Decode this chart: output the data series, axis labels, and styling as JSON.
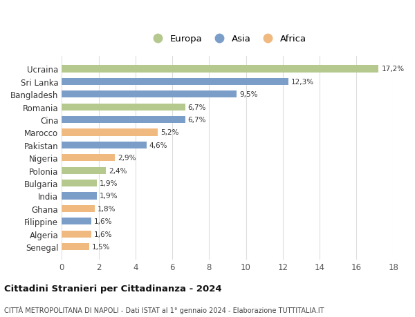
{
  "countries": [
    "Ucraina",
    "Sri Lanka",
    "Bangladesh",
    "Romania",
    "Cina",
    "Marocco",
    "Pakistan",
    "Nigeria",
    "Polonia",
    "Bulgaria",
    "India",
    "Ghana",
    "Filippine",
    "Algeria",
    "Senegal"
  ],
  "values": [
    17.2,
    12.3,
    9.5,
    6.7,
    6.7,
    5.2,
    4.6,
    2.9,
    2.4,
    1.9,
    1.9,
    1.8,
    1.6,
    1.6,
    1.5
  ],
  "labels": [
    "17,2%",
    "12,3%",
    "9,5%",
    "6,7%",
    "6,7%",
    "5,2%",
    "4,6%",
    "2,9%",
    "2,4%",
    "1,9%",
    "1,9%",
    "1,8%",
    "1,6%",
    "1,6%",
    "1,5%"
  ],
  "continents": [
    "Europa",
    "Asia",
    "Asia",
    "Europa",
    "Asia",
    "Africa",
    "Asia",
    "Africa",
    "Europa",
    "Europa",
    "Asia",
    "Africa",
    "Asia",
    "Africa",
    "Africa"
  ],
  "continent_colors": {
    "Europa": "#b5c98e",
    "Asia": "#7b9ec9",
    "Africa": "#f0b980"
  },
  "legend_order": [
    "Europa",
    "Asia",
    "Africa"
  ],
  "title": "Cittadini Stranieri per Cittadinanza - 2024",
  "subtitle": "CITTÀ METROPOLITANA DI NAPOLI - Dati ISTAT al 1° gennaio 2024 - Elaborazione TUTTITALIA.IT",
  "xlim": [
    0,
    18
  ],
  "xticks": [
    0,
    2,
    4,
    6,
    8,
    10,
    12,
    14,
    16,
    18
  ],
  "background_color": "#ffffff",
  "grid_color": "#dddddd",
  "bar_height": 0.55,
  "figsize": [
    6.0,
    4.6
  ],
  "dpi": 100
}
